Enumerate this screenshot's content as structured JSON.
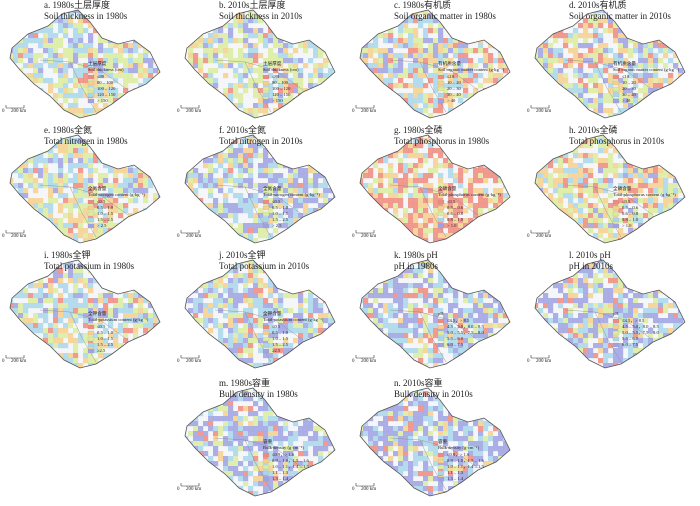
{
  "legends": {
    "thickness": {
      "title": "土层厚度",
      "subtitle": "Soil thickness (cm)",
      "items": [
        "≤80",
        "80 – 100",
        "100 – 120",
        "120 – 150",
        "> 150"
      ]
    },
    "som": {
      "title": "有机质含量",
      "subtitle": "Soil organic matter content (g·kg⁻¹)",
      "items": [
        "≤10",
        "10 – 20",
        "20 – 30",
        "30 – 40",
        "> 40"
      ]
    },
    "tn": {
      "title": "全氮含量",
      "subtitle": "Total nitrogen content (g·kg⁻¹)",
      "items": [
        "≤0.5",
        "0.5 – 1.0",
        "1.0 – 1.5",
        "1.5 – 2.5",
        "> 2.5"
      ]
    },
    "tp": {
      "title": "全磷含量",
      "subtitle": "Total phosphorus content (g·kg⁻¹)",
      "items": [
        "≤0.5",
        "0.5 – 0.6",
        "0.6 – 0.8",
        "0.8 – 1.0",
        "> 1.0"
      ]
    },
    "tk": {
      "title": "全钾含量",
      "subtitle": "Total potassium content (g·kg⁻¹)",
      "items": [
        "≤0.5",
        "0.5 – 1.0",
        "1.0 – 1.5",
        "1.5 – 2.5",
        "≥2.5"
      ]
    },
    "ph": {
      "title": "pH",
      "items": [
        "≤4.5，> 8.5",
        "4.5 – 5.0，8.0 – 8.5",
        "5.0 – 5.5，7.5 – 8.0",
        "5.5 – 6.0",
        "6.0 – 7.5"
      ]
    },
    "bd": {
      "title": "容重",
      "subtitle": "Bulk density (g·cm⁻³)",
      "items": [
        "≤0.9，> 1.6",
        "0.9 – 1.0，1.5 – 1.6",
        "1.0 – 1.1，1.4 – 1.5",
        "1.1 – 1.3",
        "1.3 – 1.4"
      ]
    }
  },
  "scale": {
    "zero": "0",
    "label": "200 km"
  },
  "panels": [
    {
      "label": "a. 1980s土层厚度",
      "subtitle": "Soil thickness in 1980s",
      "legend": "thickness"
    },
    {
      "label": "b. 2010s土层厚度",
      "subtitle": "Soil thickness in 2010s",
      "legend": "thickness"
    },
    {
      "label": "c. 1980s有机质",
      "subtitle": "Soil organic matter in 1980s",
      "legend": "som"
    },
    {
      "label": "d. 2010s有机质",
      "subtitle": "Soil organic matter in 2010s",
      "legend": "som"
    },
    {
      "label": "e. 1980s全氮",
      "subtitle": "Total nitrogen in 1980s",
      "legend": "tn"
    },
    {
      "label": "f. 2010s全氮",
      "subtitle": "Total nitrogen in 2010s",
      "legend": "tn"
    },
    {
      "label": "g. 1980s全磷",
      "subtitle": "Total phosphorus in 1980s",
      "legend": "tp"
    },
    {
      "label": "h. 2010s全磷",
      "subtitle": "Total phosphorus in 2010s",
      "legend": "tp"
    },
    {
      "label": "i. 1980s全钾",
      "subtitle": "Total potassium in 1980s",
      "legend": "tk"
    },
    {
      "label": "j. 2010s全钾",
      "subtitle": "Total potassium in 2010s",
      "legend": "tk"
    },
    {
      "label": "k. 1980s pH",
      "subtitle": "pH in 1980s",
      "legend": "ph"
    },
    {
      "label": "l. 2010s pH",
      "subtitle": "pH in 2010s",
      "legend": "ph"
    },
    {
      "label": "m. 1980s容重",
      "subtitle": "Bulk density in 1980s",
      "legend": "bd"
    },
    {
      "label": "n. 2010s容重",
      "subtitle": "Bulk density in 2010s",
      "legend": "bd"
    }
  ]
}
